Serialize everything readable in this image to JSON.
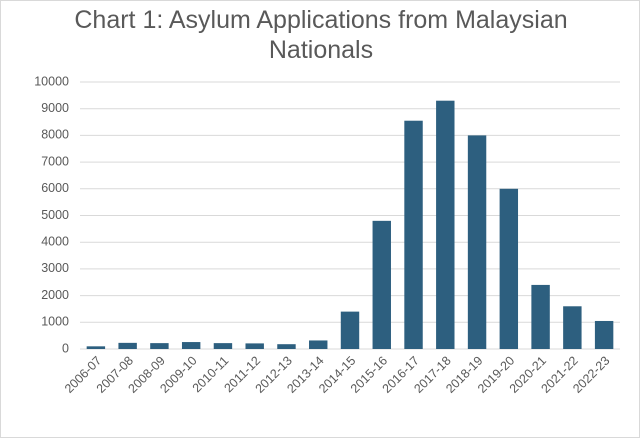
{
  "chart_data": {
    "type": "bar",
    "title": "Chart 1: Asylum Applications from Malaysian Nationals",
    "categories": [
      "2006-07",
      "2007-08",
      "2008-09",
      "2009-10",
      "2010-11",
      "2011-12",
      "2012-13",
      "2013-14",
      "2014-15",
      "2015-16",
      "2016-17",
      "2017-18",
      "2018-19",
      "2019-20",
      "2020-21",
      "2021-22",
      "2022-23"
    ],
    "values": [
      100,
      230,
      220,
      260,
      220,
      210,
      180,
      320,
      1400,
      4800,
      8550,
      9300,
      8000,
      6000,
      2400,
      1600,
      1050
    ],
    "color": "#2d5f7f",
    "ylim": [
      0,
      10000
    ],
    "yticks": [
      0,
      1000,
      2000,
      3000,
      4000,
      5000,
      6000,
      7000,
      8000,
      9000,
      10000
    ],
    "grid": true
  }
}
